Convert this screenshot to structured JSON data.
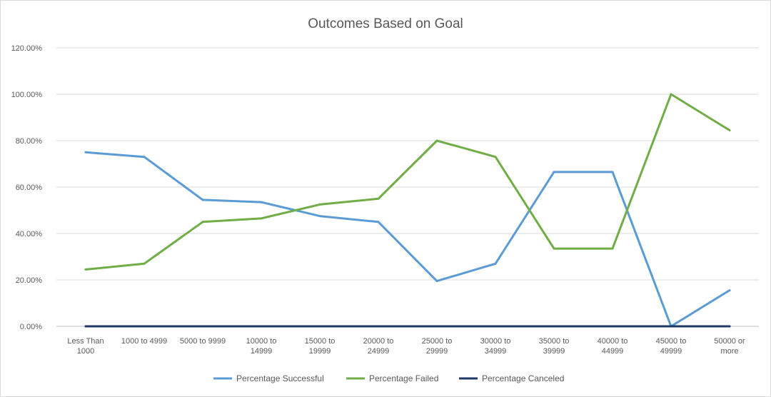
{
  "chart_data": {
    "type": "line",
    "title": "Outcomes Based on Goal",
    "xlabel": "",
    "ylabel": "",
    "ylim": [
      0,
      1.2
    ],
    "y_ticks": [
      "0.00%",
      "20.00%",
      "40.00%",
      "60.00%",
      "80.00%",
      "100.00%",
      "120.00%"
    ],
    "grid": true,
    "legend_position": "bottom",
    "categories": [
      [
        "Less Than",
        "1000"
      ],
      [
        "1000 to 4999"
      ],
      [
        "5000 to 9999"
      ],
      [
        "10000 to",
        "14999"
      ],
      [
        "15000 to",
        "19999"
      ],
      [
        "20000 to",
        "24999"
      ],
      [
        "25000 to",
        "29999"
      ],
      [
        "30000 to",
        "34999"
      ],
      [
        "35000 to",
        "39999"
      ],
      [
        "40000 to",
        "44999"
      ],
      [
        "45000 to",
        "49999"
      ],
      [
        "50000 or",
        "more"
      ]
    ],
    "series": [
      {
        "name": "Percentage Successful",
        "color": "#5b9bd5",
        "values": [
          0.75,
          0.73,
          0.545,
          0.535,
          0.475,
          0.45,
          0.195,
          0.27,
          0.665,
          0.665,
          0.0,
          0.155
        ]
      },
      {
        "name": "Percentage Failed",
        "color": "#70ad47",
        "values": [
          0.245,
          0.27,
          0.45,
          0.465,
          0.525,
          0.55,
          0.8,
          0.73,
          0.335,
          0.335,
          1.0,
          0.845
        ]
      },
      {
        "name": "Percentage Canceled",
        "color": "#203864",
        "values": [
          0,
          0,
          0,
          0,
          0,
          0,
          0,
          0,
          0,
          0,
          0,
          0
        ]
      }
    ]
  }
}
